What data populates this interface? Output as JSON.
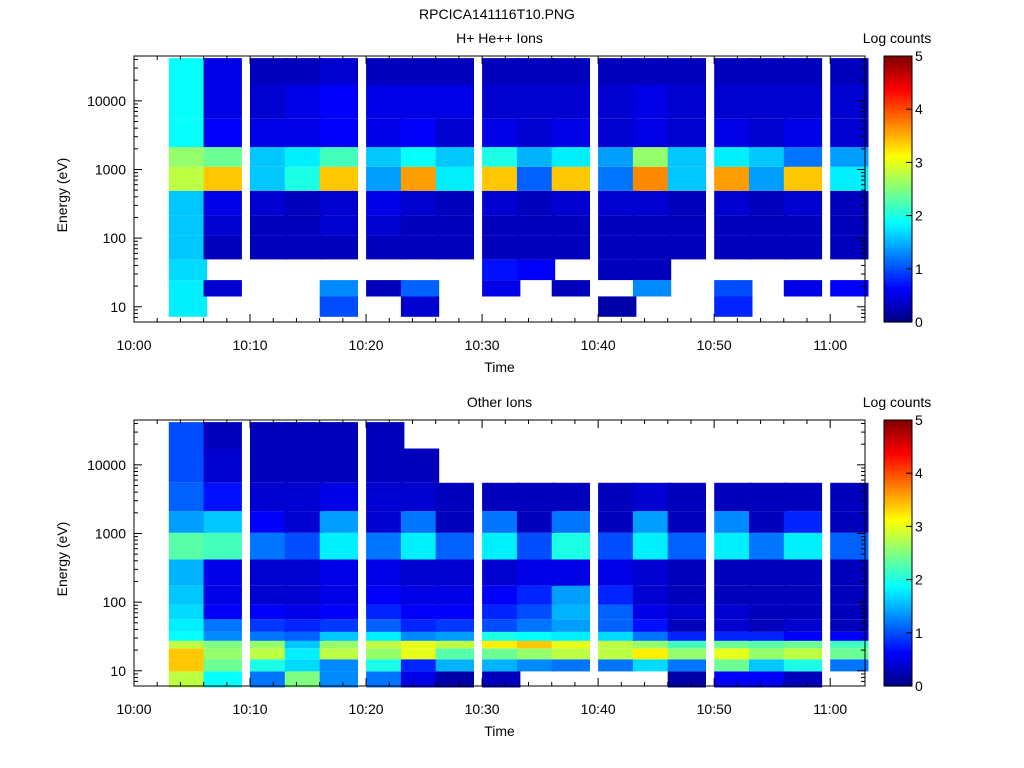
{
  "figure": {
    "title": "RPCICA141116T10.PNG"
  },
  "colorbar": {
    "label": "Log counts",
    "ticks": [
      "0",
      "1",
      "2",
      "3",
      "4",
      "5"
    ],
    "range": [
      0,
      5
    ],
    "colormap": "jet"
  },
  "chart_data": [
    {
      "type": "heatmap",
      "title": "H+ He++ Ions",
      "xlabel": "Time",
      "ylabel": "Energy (eV)",
      "x_tick_labels": [
        "10:00",
        "10:10",
        "10:20",
        "10:30",
        "10:40",
        "10:50",
        "11:00"
      ],
      "y_tick_labels": [
        "10",
        "100",
        "1000",
        "10000"
      ],
      "y_scale": "log",
      "ylim": [
        6,
        45000
      ],
      "xlim": [
        "10:00",
        "11:03"
      ],
      "colorbar_label": "Log counts",
      "time_bins": [
        "10:03",
        "10:06",
        "10:10",
        "10:13",
        "10:16",
        "10:20",
        "10:23",
        "10:26",
        "10:30",
        "10:33",
        "10:36",
        "10:40",
        "10:43",
        "10:46",
        "10:50",
        "10:53",
        "10:56",
        "11:00"
      ],
      "energy_bands_eV": [
        10,
        20,
        30,
        80,
        150,
        300,
        800,
        1500,
        3000,
        10000,
        30000
      ],
      "log_counts_by_band": {
        "10": [
          1.8,
          0.0,
          0.0,
          0.0,
          1.0,
          0.0,
          0.4,
          0.0,
          0.0,
          0.0,
          0.0,
          0.2,
          0.0,
          0.0,
          0.8,
          0.0,
          0.0,
          0.0
        ],
        "20": [
          1.8,
          0.4,
          0.0,
          0.0,
          1.3,
          0.3,
          1.1,
          0.0,
          0.5,
          0.0,
          0.3,
          0.0,
          1.3,
          0.0,
          1.0,
          0.0,
          0.5,
          0.6
        ],
        "30": [
          1.7,
          0.0,
          0.0,
          0.0,
          0.0,
          0.0,
          0.0,
          0.0,
          0.7,
          0.6,
          0.0,
          0.3,
          0.3,
          0.0,
          0.0,
          0.0,
          0.0,
          0.0
        ],
        "80": [
          1.6,
          0.3,
          0.3,
          0.3,
          0.3,
          0.3,
          0.3,
          0.3,
          0.3,
          0.3,
          0.3,
          0.3,
          0.3,
          0.3,
          0.3,
          0.3,
          0.3,
          0.3
        ],
        "150": [
          1.6,
          0.4,
          0.3,
          0.3,
          0.4,
          0.4,
          0.3,
          0.3,
          0.3,
          0.3,
          0.3,
          0.3,
          0.3,
          0.3,
          0.3,
          0.3,
          0.3,
          0.3
        ],
        "300": [
          1.6,
          0.5,
          0.4,
          0.3,
          0.4,
          0.5,
          0.4,
          0.3,
          0.4,
          0.3,
          0.4,
          0.4,
          0.4,
          0.3,
          0.4,
          0.3,
          0.4,
          0.3
        ],
        "800": [
          2.8,
          3.4,
          1.6,
          2.0,
          3.4,
          1.4,
          3.6,
          1.8,
          3.4,
          1.1,
          3.4,
          1.2,
          3.7,
          1.6,
          3.6,
          1.4,
          3.4,
          1.8
        ],
        "1500": [
          2.6,
          2.4,
          1.6,
          1.8,
          2.2,
          1.6,
          1.9,
          1.6,
          2.0,
          1.5,
          1.8,
          1.4,
          2.6,
          1.6,
          1.8,
          1.6,
          1.2,
          1.4
        ],
        "3000": [
          1.9,
          0.6,
          0.5,
          0.5,
          0.6,
          0.5,
          0.6,
          0.4,
          0.5,
          0.4,
          0.5,
          0.4,
          0.5,
          0.4,
          0.5,
          0.4,
          0.5,
          0.4
        ],
        "10000": [
          1.9,
          0.5,
          0.4,
          0.5,
          0.6,
          0.5,
          0.5,
          0.5,
          0.4,
          0.4,
          0.4,
          0.4,
          0.5,
          0.4,
          0.4,
          0.4,
          0.4,
          0.4
        ],
        "30000": [
          1.9,
          0.5,
          0.3,
          0.3,
          0.4,
          0.3,
          0.3,
          0.3,
          0.3,
          0.3,
          0.3,
          0.3,
          0.3,
          0.3,
          0.3,
          0.3,
          0.3,
          0.3
        ]
      }
    },
    {
      "type": "heatmap",
      "title": "Other Ions",
      "xlabel": "Time",
      "ylabel": "Energy (eV)",
      "x_tick_labels": [
        "10:00",
        "10:10",
        "10:20",
        "10:30",
        "10:40",
        "10:50",
        "11:00"
      ],
      "y_tick_labels": [
        "10",
        "100",
        "1000",
        "10000"
      ],
      "y_scale": "log",
      "ylim": [
        6,
        45000
      ],
      "xlim": [
        "10:00",
        "11:03"
      ],
      "colorbar_label": "Log counts",
      "time_bins": [
        "10:03",
        "10:06",
        "10:10",
        "10:13",
        "10:16",
        "10:20",
        "10:23",
        "10:26",
        "10:30",
        "10:33",
        "10:36",
        "10:40",
        "10:43",
        "10:46",
        "10:50",
        "10:53",
        "10:56",
        "11:00"
      ],
      "energy_bands_eV": [
        8,
        12,
        18,
        25,
        30,
        45,
        70,
        120,
        250,
        700,
        1500,
        3000,
        10000,
        30000
      ],
      "log_counts_by_band": {
        "8": [
          2.8,
          1.9,
          1.2,
          2.5,
          1.3,
          1.2,
          0.5,
          0.2,
          0.3,
          0.0,
          0.0,
          0.0,
          0.0,
          0.2,
          0.6,
          0.6,
          0.3,
          0.0
        ],
        "12": [
          3.4,
          2.4,
          2.0,
          1.7,
          1.3,
          2.0,
          0.8,
          1.5,
          1.5,
          1.3,
          1.2,
          1.2,
          1.7,
          1.2,
          2.4,
          1.6,
          2.0,
          1.2
        ],
        "18": [
          3.4,
          2.6,
          2.8,
          1.8,
          2.8,
          2.6,
          3.0,
          2.3,
          2.4,
          2.6,
          2.8,
          2.8,
          3.2,
          2.6,
          3.0,
          2.6,
          2.8,
          2.4
        ],
        "25": [
          2.8,
          2.5,
          2.6,
          1.6,
          2.6,
          2.8,
          3.0,
          2.8,
          3.2,
          3.4,
          3.0,
          2.8,
          2.6,
          2.2,
          2.4,
          2.3,
          2.4,
          2.2
        ],
        "30": [
          1.9,
          1.3,
          1.2,
          1.1,
          1.6,
          1.8,
          1.3,
          1.4,
          2.0,
          1.9,
          1.8,
          1.7,
          1.2,
          0.8,
          0.8,
          0.8,
          0.6,
          0.6
        ],
        "45": [
          1.8,
          1.2,
          0.9,
          0.8,
          0.9,
          1.1,
          0.8,
          0.9,
          1.0,
          1.2,
          1.4,
          1.1,
          0.7,
          0.3,
          0.4,
          0.3,
          0.4,
          0.3
        ],
        "70": [
          1.7,
          0.6,
          0.6,
          0.5,
          0.6,
          0.8,
          0.6,
          0.6,
          0.8,
          1.0,
          1.5,
          1.1,
          0.5,
          0.4,
          0.4,
          0.3,
          0.3,
          0.3
        ],
        "120": [
          1.6,
          0.5,
          0.4,
          0.4,
          0.5,
          0.6,
          0.5,
          0.5,
          0.6,
          0.8,
          1.4,
          0.8,
          0.4,
          0.3,
          0.3,
          0.3,
          0.3,
          0.3
        ],
        "250": [
          1.5,
          0.5,
          0.4,
          0.4,
          0.5,
          0.5,
          0.4,
          0.4,
          0.4,
          0.5,
          0.5,
          0.5,
          0.4,
          0.3,
          0.3,
          0.3,
          0.3,
          0.3
        ],
        "700": [
          2.3,
          2.2,
          1.2,
          1.0,
          1.8,
          1.2,
          1.8,
          1.1,
          1.8,
          1.0,
          2.0,
          1.0,
          1.8,
          1.1,
          1.8,
          1.2,
          1.8,
          1.1
        ],
        "1500": [
          1.4,
          1.6,
          0.6,
          0.4,
          1.4,
          0.4,
          1.2,
          0.3,
          1.2,
          0.3,
          1.2,
          0.3,
          1.4,
          0.3,
          1.3,
          0.3,
          0.8,
          0.3
        ],
        "3000": [
          1.1,
          0.7,
          0.4,
          0.4,
          0.5,
          0.4,
          0.4,
          0.3,
          0.3,
          0.3,
          0.3,
          0.3,
          0.4,
          0.3,
          0.3,
          0.3,
          0.3,
          0.3
        ],
        "10000": [
          1.0,
          0.4,
          0.3,
          0.3,
          0.3,
          0.3,
          0.3,
          0.0,
          0.0,
          0.0,
          0.0,
          0.0,
          0.0,
          0.0,
          0.0,
          0.0,
          0.0,
          0.0
        ],
        "30000": [
          1.0,
          0.3,
          0.3,
          0.3,
          0.3,
          0.3,
          0.0,
          0.0,
          0.0,
          0.0,
          0.0,
          0.0,
          0.0,
          0.0,
          0.0,
          0.0,
          0.0,
          0.0
        ]
      }
    }
  ]
}
